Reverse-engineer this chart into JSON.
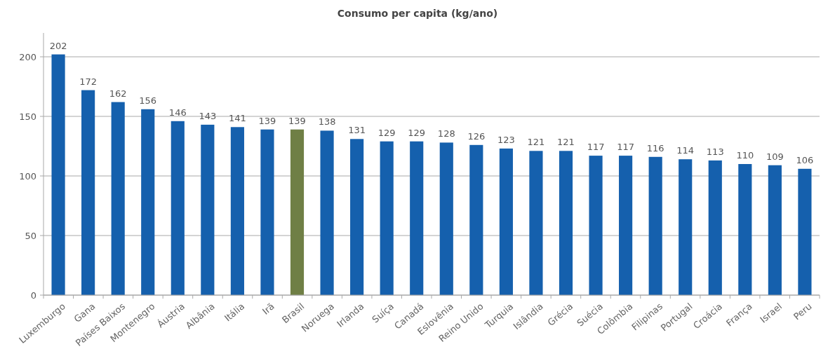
{
  "chart_data": {
    "type": "bar",
    "title": "Consumo per capita (kg/ano)",
    "categories": [
      "Luxemburgo",
      "Gana",
      "Países Baixos",
      "Montenegro",
      "Áustria",
      "Albânia",
      "Itália",
      "Irã",
      "Brasil",
      "Noruega",
      "Irlanda",
      "Suíça",
      "Canadá",
      "Eslovênia",
      "Reino Unido",
      "Turquia",
      "Islândia",
      "Grécia",
      "Suécia",
      "Colômbia",
      "Filipinas",
      "Portugal",
      "Croácia",
      "França",
      "Israel",
      "Peru"
    ],
    "values": [
      202,
      172,
      162,
      156,
      146,
      143,
      141,
      139,
      139,
      138,
      131,
      129,
      129,
      128,
      126,
      123,
      121,
      121,
      117,
      117,
      116,
      114,
      113,
      110,
      109,
      106
    ],
    "colors": [
      "#1560ad",
      "#1560ad",
      "#1560ad",
      "#1560ad",
      "#1560ad",
      "#1560ad",
      "#1560ad",
      "#1560ad",
      "#6f7f45",
      "#1560ad",
      "#1560ad",
      "#1560ad",
      "#1560ad",
      "#1560ad",
      "#1560ad",
      "#1560ad",
      "#1560ad",
      "#1560ad",
      "#1560ad",
      "#1560ad",
      "#1560ad",
      "#1560ad",
      "#1560ad",
      "#1560ad",
      "#1560ad",
      "#1560ad"
    ],
    "ylim": [
      0,
      220
    ],
    "yticks": [
      0,
      50,
      100,
      150,
      200
    ],
    "grid": "y",
    "data_labels": true
  }
}
